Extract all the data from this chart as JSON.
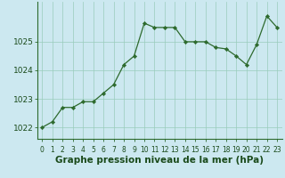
{
  "x": [
    0,
    1,
    2,
    3,
    4,
    5,
    6,
    7,
    8,
    9,
    10,
    11,
    12,
    13,
    14,
    15,
    16,
    17,
    18,
    19,
    20,
    21,
    22,
    23
  ],
  "y": [
    1022.0,
    1022.2,
    1022.7,
    1022.7,
    1022.9,
    1022.9,
    1023.2,
    1023.5,
    1024.2,
    1024.5,
    1025.65,
    1025.5,
    1025.5,
    1025.5,
    1025.0,
    1025.0,
    1025.0,
    1024.8,
    1024.75,
    1024.5,
    1024.2,
    1024.9,
    1025.9,
    1025.5
  ],
  "line_color": "#2d6a2d",
  "marker": "D",
  "marker_size": 2.2,
  "bg_color": "#cce8f0",
  "grid_color": "#99ccbb",
  "xlabel": "Graphe pression niveau de la mer (hPa)",
  "xlabel_fontsize": 7.5,
  "xlabel_color": "#1a4a1a",
  "yticks": [
    1022,
    1023,
    1024,
    1025
  ],
  "ylim": [
    1021.6,
    1026.4
  ],
  "xlim": [
    -0.5,
    23.5
  ],
  "xtick_labels": [
    "0",
    "1",
    "2",
    "3",
    "4",
    "5",
    "6",
    "7",
    "8",
    "9",
    "10",
    "11",
    "12",
    "13",
    "14",
    "15",
    "16",
    "17",
    "18",
    "19",
    "20",
    "21",
    "22",
    "23"
  ],
  "ytick_fontsize": 6.5,
  "xtick_fontsize": 5.5,
  "tick_color": "#1a4a1a",
  "spine_color": "#2d6a2d"
}
